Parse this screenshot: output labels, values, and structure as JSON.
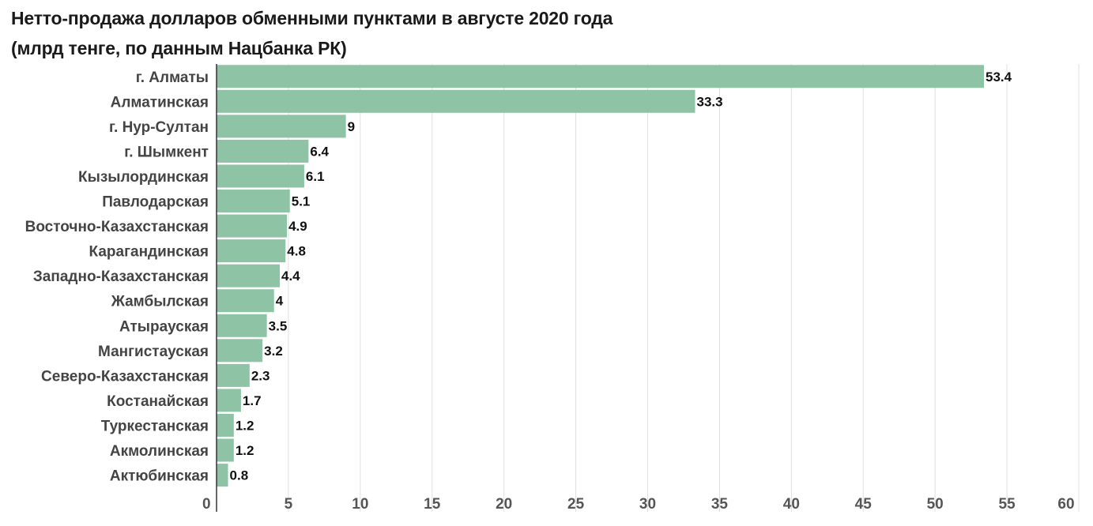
{
  "title_line1": "Нетто-продажа долларов обменными пунктами в августе 2020 года",
  "title_line2": "(млрд тенге, по данным Нацбанка РК)",
  "chart_data": {
    "type": "bar",
    "orientation": "horizontal",
    "title": "Нетто-продажа долларов обменными пунктами в августе 2020 года (млрд тенге, по данным Нацбанка РК)",
    "categories": [
      "г. Алматы",
      "Алматинская",
      "г. Нур-Султан",
      "г. Шымкент",
      "Кызылординская",
      "Павлодарская",
      "Восточно-Казахстанская",
      "Карагандинская",
      "Западно-Казахстанская",
      "Жамбылская",
      "Атырауская",
      "Мангистауская",
      "Северо-Казахстанская",
      "Костанайская",
      "Туркестанская",
      "Акмолинская",
      "Актюбинская"
    ],
    "values": [
      53.4,
      33.3,
      9,
      6.4,
      6.1,
      5.1,
      4.9,
      4.8,
      4.4,
      4,
      3.5,
      3.2,
      2.3,
      1.7,
      1.2,
      1.2,
      0.8
    ],
    "value_labels": [
      "53.4",
      "33.3",
      "9",
      "6.4",
      "6.1",
      "5.1",
      "4.9",
      "4.8",
      "4.4",
      "4",
      "3.5",
      "3.2",
      "2.3",
      "1.7",
      "1.2",
      "1.2",
      "0.8"
    ],
    "xlim": [
      0,
      60
    ],
    "xticks": [
      0,
      5,
      10,
      15,
      20,
      25,
      30,
      35,
      40,
      45,
      50,
      55,
      60
    ],
    "xlabel": "",
    "ylabel": "",
    "grid": "vertical",
    "bar_color": "#8fc3a5",
    "grid_color": "#e0e0e0",
    "axis_color": "#333333"
  }
}
